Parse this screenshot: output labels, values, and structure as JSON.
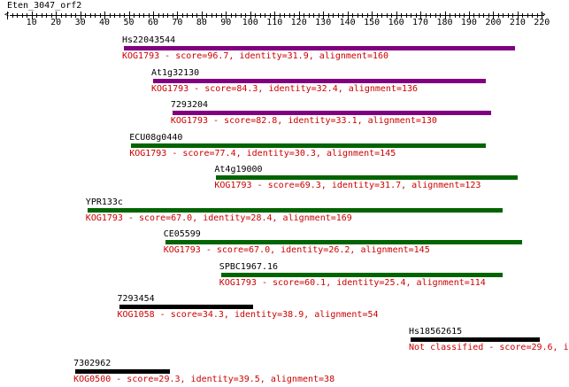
{
  "sequence": {
    "name": "Eten_3047_orf2",
    "length": 220,
    "axis_labels": [
      "10",
      "20",
      "30",
      "40",
      "50",
      "60",
      "70",
      "80",
      "90",
      "100",
      "110",
      "120",
      "130",
      "140",
      "150",
      "160",
      "170",
      "180",
      "190",
      "200",
      "210",
      "220"
    ]
  },
  "colors": {
    "axis": "#000000",
    "label_text": "#cc0000",
    "purple": "#800080",
    "green": "#006400",
    "black": "#000000"
  },
  "hits": [
    {
      "name": "Hs22043544",
      "start": 48,
      "end": 209,
      "color": "purple",
      "label": "KOG1793 - score=96.7, identity=31.9, alignment=160"
    },
    {
      "name": "At1g32130",
      "start": 60,
      "end": 197,
      "color": "purple",
      "label": "KOG1793 - score=84.3, identity=32.4, alignment=136"
    },
    {
      "name": "7293204",
      "start": 68,
      "end": 199,
      "color": "purple",
      "label": "KOG1793 - score=82.8, identity=33.1, alignment=130"
    },
    {
      "name": "ECU08g0440",
      "start": 51,
      "end": 197,
      "color": "green",
      "label": "KOG1793 - score=77.4, identity=30.3, alignment=145"
    },
    {
      "name": "At4g19000",
      "start": 86,
      "end": 210,
      "color": "green",
      "label": "KOG1793 - score=69.3, identity=31.7, alignment=123"
    },
    {
      "name": "YPR133c",
      "start": 33,
      "end": 204,
      "color": "green",
      "label": "KOG1793 - score=67.0, identity=28.4, alignment=169"
    },
    {
      "name": "CE05599",
      "start": 65,
      "end": 212,
      "color": "green",
      "label": "KOG1793 - score=67.0, identity=26.2, alignment=145"
    },
    {
      "name": "SPBC1967.16",
      "start": 88,
      "end": 204,
      "color": "green",
      "label": "KOG1793 - score=60.1, identity=25.4, alignment=114"
    },
    {
      "name": "7293454",
      "start": 46,
      "end": 101,
      "color": "black",
      "label": "KOG1058 - score=34.3, identity=38.9, alignment=54"
    },
    {
      "name": "Hs18562615",
      "start": 166,
      "end": 219,
      "color": "black",
      "label": "Not classified - score=29.6, i"
    },
    {
      "name": "7302962",
      "start": 28,
      "end": 67,
      "color": "black",
      "label": "KOG0500 - score=29.3, identity=39.5, alignment=38"
    }
  ]
}
